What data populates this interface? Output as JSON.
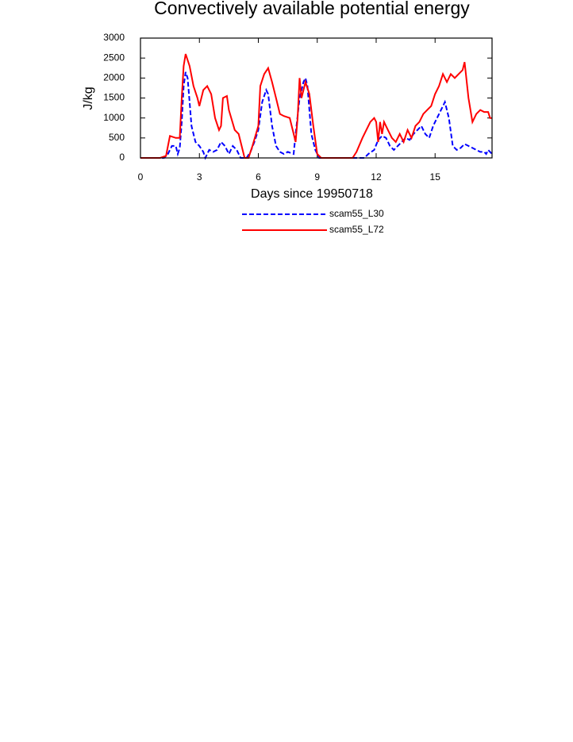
{
  "chart_data": {
    "type": "line",
    "title": "Convectively available potential energy",
    "x_label": "Days since 19950718",
    "y_label": "J/kg",
    "xlim": [
      0,
      17.9
    ],
    "ylim": [
      0,
      3000
    ],
    "xticks": [
      0,
      3,
      6,
      9,
      12,
      15
    ],
    "yticks": [
      0,
      500,
      1000,
      1500,
      2000,
      2500,
      3000
    ],
    "series": [
      {
        "name": "scam55_L30",
        "color": "#0000ff",
        "line_style": "dashed",
        "x": [
          0,
          1.2,
          1.4,
          1.6,
          1.8,
          1.9,
          2.0,
          2.1,
          2.2,
          2.3,
          2.4,
          2.5,
          2.6,
          2.8,
          3.0,
          3.2,
          3.3,
          3.5,
          3.7,
          3.9,
          4.1,
          4.3,
          4.5,
          4.7,
          4.9,
          5.1,
          5.4,
          5.6,
          5.8,
          6.0,
          6.2,
          6.4,
          6.5,
          6.7,
          6.9,
          7.1,
          7.3,
          7.5,
          7.8,
          7.9,
          8.1,
          8.3,
          8.4,
          8.5,
          8.7,
          8.9,
          9.1,
          11.4,
          11.6,
          11.9,
          12.1,
          12.3,
          12.5,
          12.7,
          12.9,
          13.1,
          13.3,
          13.5,
          13.7,
          13.9,
          14.1,
          14.3,
          14.5,
          14.7,
          14.9,
          15.1,
          15.3,
          15.5,
          15.7,
          15.9,
          16.1,
          16.3,
          16.5,
          16.7,
          16.9,
          17.1,
          17.3,
          17.5,
          17.6,
          17.7,
          17.9
        ],
        "values": [
          0,
          0,
          100,
          300,
          300,
          100,
          250,
          900,
          1800,
          2150,
          2000,
          1400,
          800,
          400,
          300,
          150,
          0,
          200,
          150,
          200,
          400,
          300,
          100,
          300,
          200,
          0,
          0,
          150,
          400,
          700,
          1400,
          1700,
          1600,
          800,
          300,
          150,
          100,
          150,
          100,
          600,
          1500,
          1900,
          2000,
          1800,
          600,
          200,
          0,
          0,
          100,
          200,
          450,
          550,
          500,
          300,
          200,
          300,
          400,
          500,
          450,
          600,
          700,
          800,
          600,
          500,
          800,
          1000,
          1200,
          1400,
          1000,
          300,
          200,
          250,
          350,
          300,
          250,
          200,
          150,
          150,
          100,
          200,
          100
        ]
      },
      {
        "name": "scam55_L72",
        "color": "#ff0000",
        "line_style": "solid",
        "x": [
          0,
          1.0,
          1.3,
          1.5,
          1.8,
          2.0,
          2.1,
          2.2,
          2.3,
          2.5,
          2.7,
          2.9,
          3.0,
          3.2,
          3.4,
          3.6,
          3.8,
          4.0,
          4.1,
          4.2,
          4.4,
          4.5,
          4.8,
          5.0,
          5.2,
          5.3,
          5.5,
          5.7,
          6.0,
          6.1,
          6.3,
          6.5,
          6.7,
          6.9,
          7.1,
          7.3,
          7.6,
          7.9,
          8.0,
          8.1,
          8.2,
          8.4,
          8.6,
          8.8,
          9.0,
          9.2,
          10.8,
          11.0,
          11.3,
          11.5,
          11.7,
          11.9,
          12.0,
          12.1,
          12.2,
          12.3,
          12.4,
          12.6,
          12.8,
          13.0,
          13.2,
          13.4,
          13.6,
          13.8,
          14.0,
          14.2,
          14.4,
          14.6,
          14.8,
          15.0,
          15.2,
          15.4,
          15.6,
          15.8,
          16.0,
          16.2,
          16.4,
          16.5,
          16.7,
          16.9,
          17.1,
          17.3,
          17.5,
          17.7,
          17.8,
          17.9
        ],
        "values": [
          0,
          0,
          50,
          550,
          500,
          500,
          1500,
          2300,
          2600,
          2300,
          1800,
          1500,
          1300,
          1700,
          1800,
          1600,
          1000,
          700,
          800,
          1500,
          1550,
          1200,
          700,
          600,
          200,
          0,
          0,
          300,
          800,
          1800,
          2100,
          2250,
          1900,
          1500,
          1100,
          1050,
          1000,
          400,
          1000,
          2000,
          1500,
          1900,
          1600,
          800,
          100,
          0,
          0,
          150,
          500,
          700,
          900,
          1000,
          900,
          400,
          900,
          600,
          900,
          700,
          500,
          400,
          600,
          400,
          700,
          500,
          800,
          900,
          1100,
          1200,
          1300,
          1600,
          1800,
          2100,
          1900,
          2100,
          2000,
          2100,
          2200,
          2400,
          1500,
          900,
          1100,
          1200,
          1150,
          1150,
          1000,
          1000
        ]
      }
    ]
  }
}
